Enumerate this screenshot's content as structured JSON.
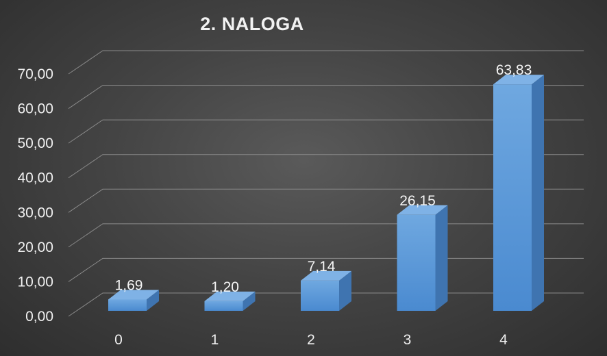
{
  "chart_data": {
    "type": "bar",
    "title": "2. NALOGA",
    "categories": [
      "0",
      "1",
      "2",
      "3",
      "4"
    ],
    "values": [
      1.69,
      1.2,
      7.14,
      26.15,
      63.83
    ],
    "data_labels": [
      "1,69",
      "1,20",
      "7,14",
      "26,15",
      "63,83"
    ],
    "ylim": [
      0,
      70
    ],
    "yticks": [
      "0,00",
      "10,00",
      "20,00",
      "30,00",
      "40,00",
      "50,00",
      "60,00",
      "70,00"
    ],
    "grid": true,
    "style": "3d-column",
    "bar_color": "#5b9bd5"
  }
}
